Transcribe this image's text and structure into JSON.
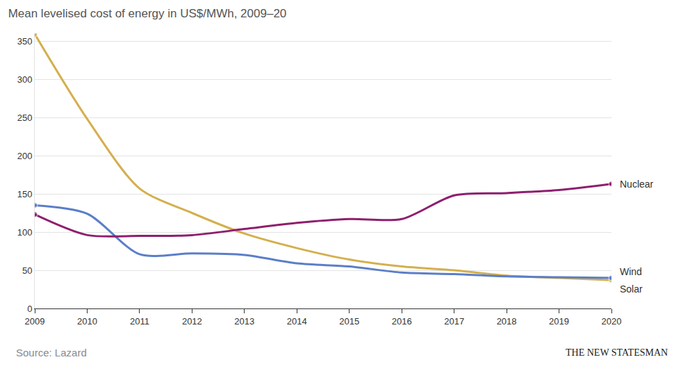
{
  "chart_data": {
    "type": "line",
    "title": "Mean levelised cost of energy in US$/MWh, 2009–20",
    "source": "Source: Lazard",
    "logo": "THE NEW STATESMAN",
    "x": [
      2009,
      2010,
      2011,
      2012,
      2013,
      2014,
      2015,
      2016,
      2017,
      2018,
      2019,
      2020
    ],
    "series": [
      {
        "name": "Solar",
        "color": "#d4af4d",
        "values": [
          359,
          248,
          157,
          125,
          98,
          79,
          64,
          55,
          50,
          43,
          40,
          37
        ]
      },
      {
        "name": "Wind",
        "color": "#5b7ec8",
        "values": [
          135,
          124,
          71,
          72,
          70,
          59,
          55,
          47,
          45,
          42,
          41,
          40
        ]
      },
      {
        "name": "Nuclear",
        "color": "#8e1f6e",
        "values": [
          123,
          96,
          95,
          96,
          104,
          112,
          117,
          117,
          148,
          151,
          155,
          163
        ]
      }
    ],
    "xlim": [
      2009,
      2020
    ],
    "xticks": [
      2009,
      2010,
      2011,
      2012,
      2013,
      2014,
      2015,
      2016,
      2017,
      2018,
      2019,
      2020
    ],
    "ylim": [
      0,
      360
    ],
    "yticks": [
      0,
      50,
      100,
      150,
      200,
      250,
      300,
      350
    ],
    "grid": true,
    "marker": "endpoints",
    "line_style": "smooth"
  }
}
